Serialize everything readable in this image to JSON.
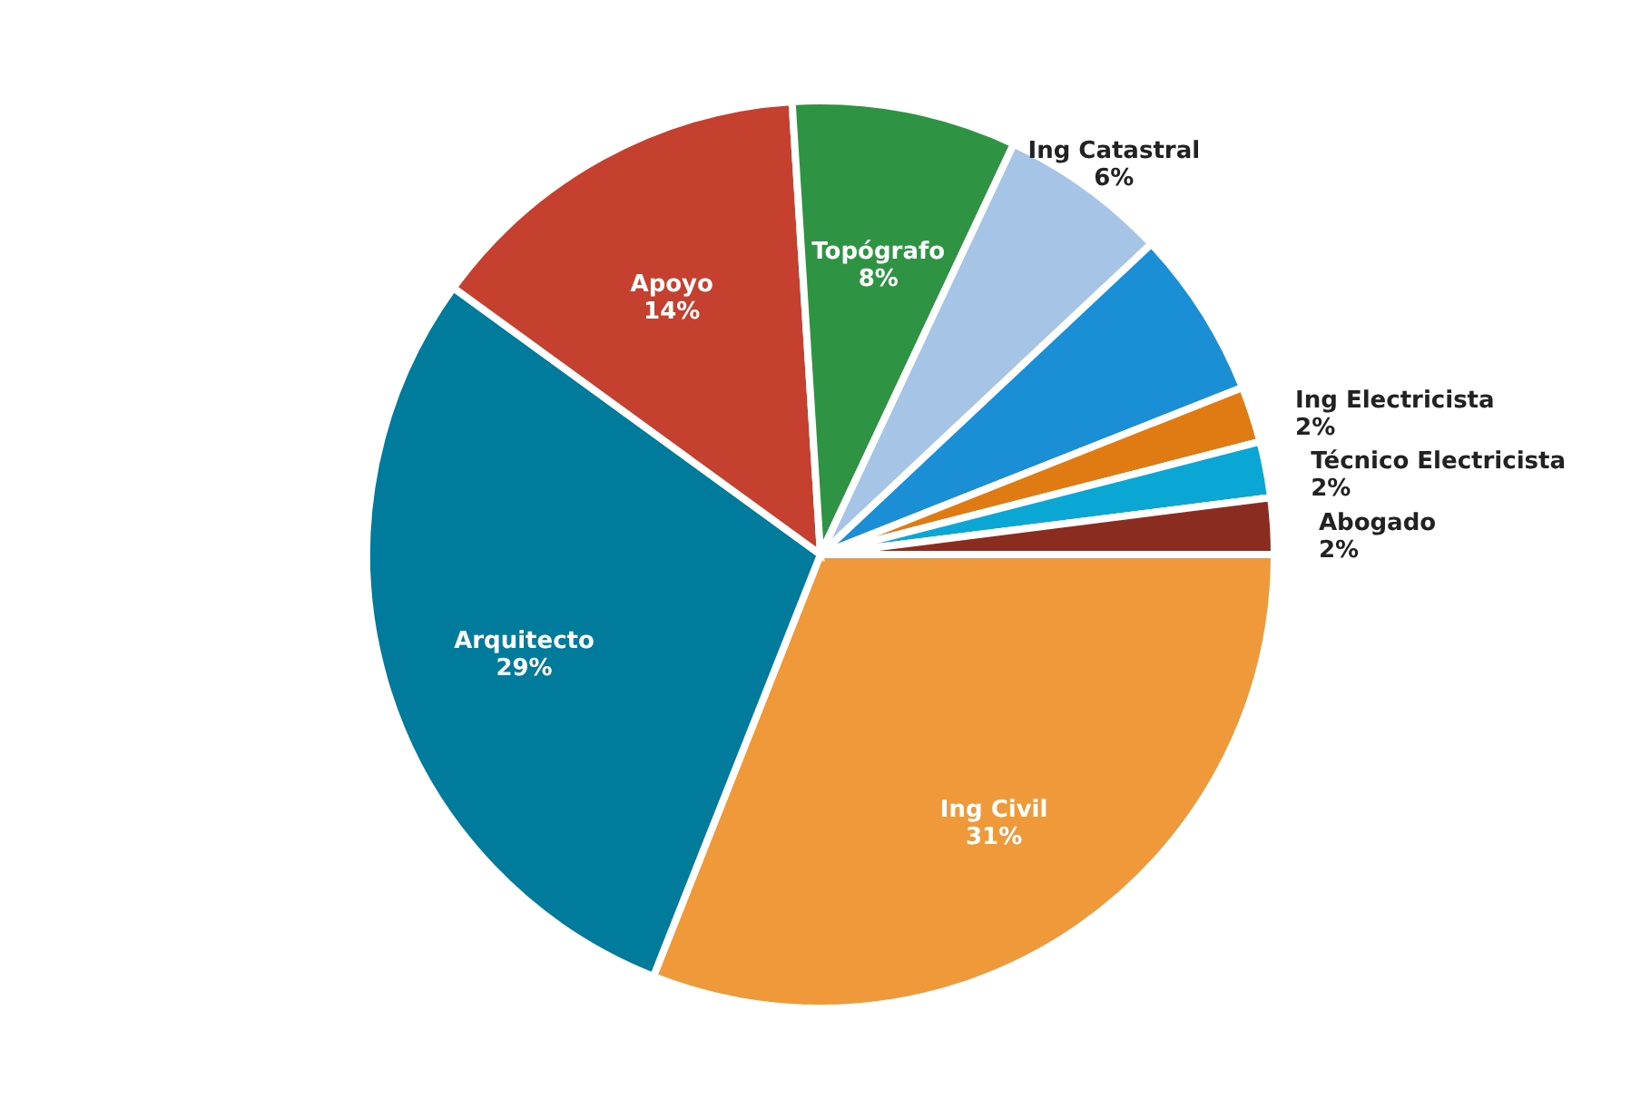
{
  "chart_data": {
    "type": "pie",
    "categories": [
      "Ing Civil",
      "Arquitecto",
      "Apoyo",
      "Topógrafo",
      "Ing Catastral",
      null,
      "Ing Electricista",
      "Técnico Electricista",
      "Abogado"
    ],
    "values": [
      31,
      29,
      14,
      8,
      6,
      6,
      2,
      2,
      2
    ],
    "value_labels": [
      "31%",
      "29%",
      "14%",
      "8%",
      "6%",
      null,
      "2%",
      "2%",
      "2%"
    ],
    "colors": [
      "#f0993a",
      "#007b9c",
      "#c5402f",
      "#2e9444",
      "#a6c4e6",
      "#1a8fd6",
      "#e07b14",
      "#0aa6d4",
      "#8b2c21"
    ]
  }
}
